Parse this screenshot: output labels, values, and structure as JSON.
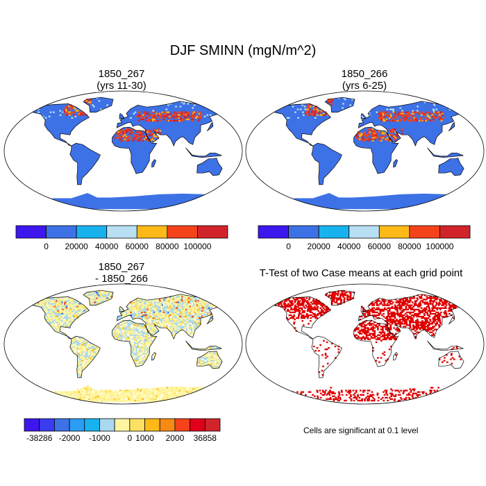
{
  "title": "DJF SMINN (mgN/m^2)",
  "panels": [
    {
      "title_line1": "1850_267",
      "title_line2": "(yrs 11-30)"
    },
    {
      "title_line1": "1850_266",
      "title_line2": "(yrs 6-25)"
    },
    {
      "title_line1": "1850_267",
      "title_line2": "- 1850_266"
    },
    {
      "title_line1": "T-Test of two Case means at each grid point",
      "title_line2": ""
    }
  ],
  "colorbar_abs": {
    "colors": [
      "#3e17ef",
      "#3d71e6",
      "#18b3ef",
      "#b8dff2",
      "#fcb918",
      "#f4421b",
      "#d1232a"
    ],
    "labels": [
      "0",
      "20000",
      "40000",
      "60000",
      "80000",
      "100000"
    ]
  },
  "colorbar_diff": {
    "colors": [
      "#3e17ef",
      "#3a3cf0",
      "#3d71e6",
      "#2a9ef4",
      "#18b3ef",
      "#a9d8f0",
      "#fff5a0",
      "#fde063",
      "#fcb918",
      "#f68a14",
      "#f4421b",
      "#e1001a",
      "#d1232a"
    ],
    "labels": [
      "-38286",
      "-2000",
      "-1000",
      "0",
      "1000",
      "2000",
      "36858"
    ]
  },
  "significance_note": "Cells are significant at 0.1 level",
  "chart_data": [
    {
      "type": "heatmap",
      "title": "1850_267 (yrs 11-30)",
      "variable": "DJF SMINN",
      "units": "mgN/m^2",
      "projection": "Robinson",
      "levels": [
        0,
        20000,
        40000,
        60000,
        80000,
        100000
      ]
    },
    {
      "type": "heatmap",
      "title": "1850_266 (yrs 6-25)",
      "variable": "DJF SMINN",
      "units": "mgN/m^2",
      "projection": "Robinson",
      "levels": [
        0,
        20000,
        40000,
        60000,
        80000,
        100000
      ]
    },
    {
      "type": "heatmap",
      "title": "1850_267 - 1850_266",
      "variable": "DJF SMINN difference",
      "units": "mgN/m^2",
      "projection": "Robinson",
      "levels": [
        -38286,
        -2000,
        -1000,
        0,
        1000,
        2000,
        36858
      ]
    },
    {
      "type": "heatmap",
      "title": "T-Test of two Case means at each grid point",
      "significance_level": 0.1,
      "note": "Cells are significant at 0.1 level"
    }
  ]
}
